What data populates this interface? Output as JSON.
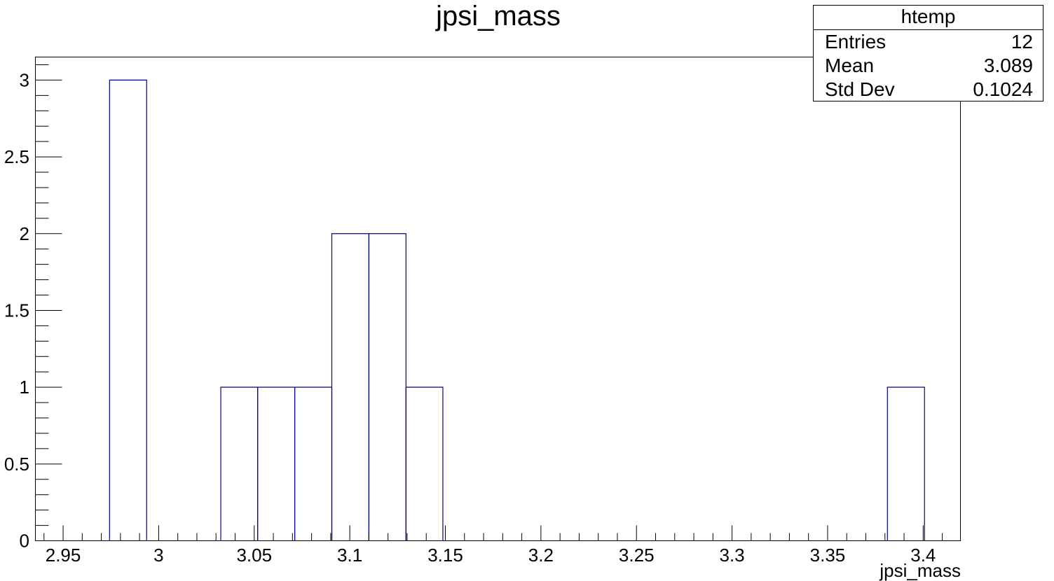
{
  "chart_data": {
    "type": "bar",
    "style": "step-histogram",
    "title": "jpsi_mass",
    "xlabel": "jpsi_mass",
    "ylabel": "",
    "xlim": [
      2.9355,
      3.4195
    ],
    "ylim": [
      0,
      3.15
    ],
    "bin_edges": [
      2.9743,
      2.9937,
      3.0131,
      3.0325,
      3.0518,
      3.0712,
      3.0906,
      3.11,
      3.1294,
      3.1487,
      3.1681,
      3.1875,
      3.2069,
      3.2263,
      3.2456,
      3.265,
      3.2844,
      3.3038,
      3.3232,
      3.3425,
      3.3619,
      3.3813,
      3.4007
    ],
    "values": [
      3,
      0,
      0,
      1,
      1,
      1,
      2,
      2,
      1,
      0,
      0,
      0,
      0,
      0,
      0,
      0,
      0,
      0,
      0,
      0,
      0,
      1
    ],
    "x_ticks": [
      "2.95",
      "3",
      "3.05",
      "3.1",
      "3.15",
      "3.2",
      "3.25",
      "3.3",
      "3.35",
      "3.4"
    ],
    "x_tick_values": [
      2.95,
      3.0,
      3.05,
      3.1,
      3.15,
      3.2,
      3.25,
      3.3,
      3.35,
      3.4
    ],
    "y_ticks": [
      "0",
      "0.5",
      "1",
      "1.5",
      "2",
      "2.5",
      "3"
    ],
    "y_tick_values": [
      0,
      0.5,
      1,
      1.5,
      2,
      2.5,
      3
    ],
    "line_color": "#000099",
    "grid": false,
    "legend": "none"
  },
  "stats_box": {
    "title": "htemp",
    "rows": [
      {
        "label": "Entries",
        "value": "12"
      },
      {
        "label": "Mean",
        "value": "3.089"
      },
      {
        "label": "Std Dev",
        "value": "0.1024"
      }
    ]
  }
}
